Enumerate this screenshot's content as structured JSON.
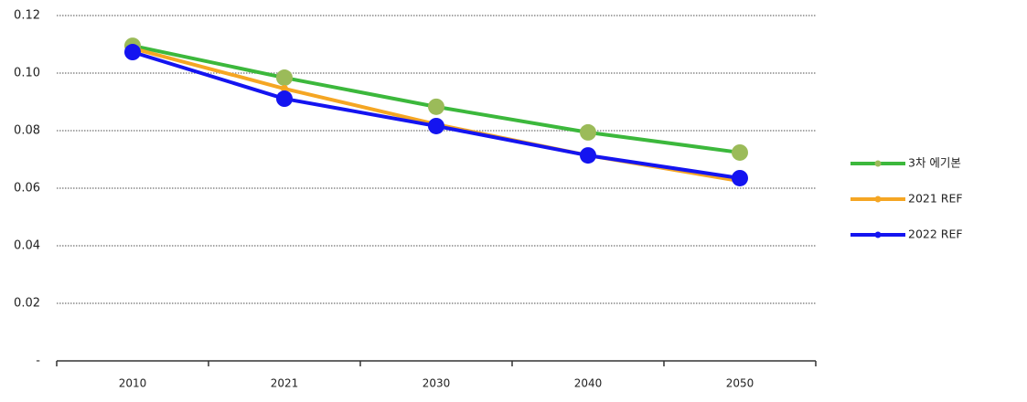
{
  "chart_data": {
    "type": "line",
    "categories": [
      "2010",
      "2021",
      "2030",
      "2040",
      "2050"
    ],
    "series": [
      {
        "name": "3차 에기본",
        "color": "#3cb83c",
        "marker_color": "#9bbb59",
        "values": [
          0.1095,
          0.0984,
          0.0883,
          0.0794,
          0.0724
        ]
      },
      {
        "name": "2021 REF",
        "color": "#f5a623",
        "marker_color": "#f5a623",
        "values": [
          0.1086,
          0.0946,
          0.0822,
          0.0714,
          0.0625
        ]
      },
      {
        "name": "2022 REF",
        "color": "#1414f0",
        "marker_color": "#1414f0",
        "values": [
          0.1073,
          0.0911,
          0.0816,
          0.0714,
          0.0635
        ]
      }
    ],
    "ylim": [
      0,
      0.12
    ],
    "yticks": [
      {
        "value": 0,
        "label": "-"
      },
      0.02,
      0.04,
      0.06,
      0.08,
      {
        "value": 0.1,
        "label": "0.10"
      },
      0.12
    ],
    "grid": true,
    "legend": "right"
  }
}
